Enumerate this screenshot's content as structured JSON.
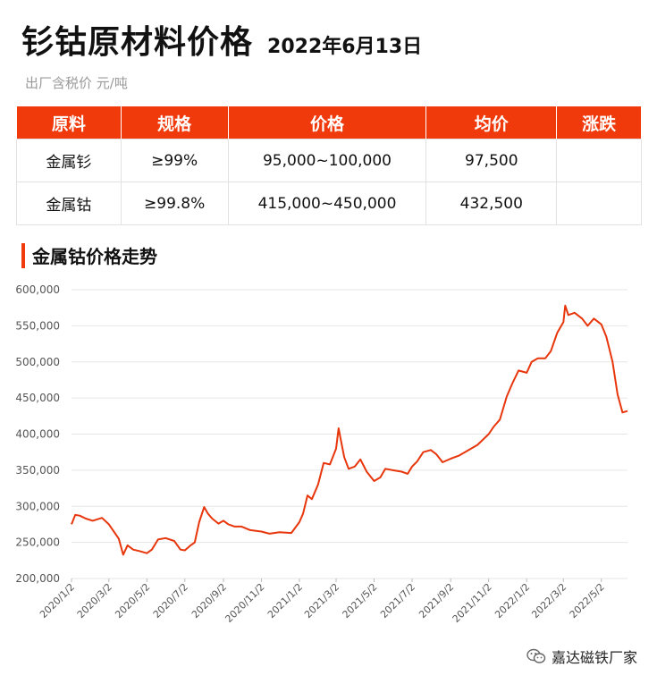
{
  "header": {
    "title": "钐钴原材料价格",
    "date": "2022年6月13日",
    "subtitle": "出厂含税价 元/吨"
  },
  "table": {
    "columns": [
      "原料",
      "规格",
      "价格",
      "均价",
      "涨跌"
    ],
    "rows": [
      [
        "金属钐",
        "≥99%",
        "95,000~100,000",
        "97,500",
        ""
      ],
      [
        "金属钴",
        "≥99.8%",
        "415,000~450,000",
        "432,500",
        ""
      ]
    ]
  },
  "section_title": "金属钴价格走势",
  "watermark": "嘉达磁铁厂家",
  "colors": {
    "accent": "#f03a0c",
    "line": "#e8360c"
  },
  "icons": {
    "watermark": "wechat-icon"
  },
  "chart_data": {
    "type": "line",
    "title": "",
    "xlabel": "",
    "ylabel": "",
    "ylim": [
      200000,
      600000
    ],
    "yticks": [
      200000,
      250000,
      300000,
      350000,
      400000,
      450000,
      500000,
      550000,
      600000
    ],
    "ytick_labels": [
      "200,000",
      "250,000",
      "300,000",
      "350,000",
      "400,000",
      "450,000",
      "500,000",
      "550,000",
      "600,000"
    ],
    "xlim": [
      "2020-01-02",
      "2022-06-13"
    ],
    "xtick_labels": [
      "2020/1/2",
      "2020/3/2",
      "2020/5/2",
      "2020/7/2",
      "2020/9/2",
      "2020/11/2",
      "2021/1/2",
      "2021/3/2",
      "2021/5/2",
      "2021/7/2",
      "2021/9/2",
      "2021/11/2",
      "2022/1/2",
      "2022/3/2",
      "2022/5/2"
    ],
    "xtick_dates": [
      "2020-01-02",
      "2020-03-02",
      "2020-05-02",
      "2020-07-02",
      "2020-09-02",
      "2020-11-02",
      "2021-01-02",
      "2021-03-02",
      "2021-05-02",
      "2021-07-02",
      "2021-09-02",
      "2021-11-02",
      "2022-01-02",
      "2022-03-02",
      "2022-05-02"
    ],
    "grid": true,
    "legend": "none",
    "series": [
      {
        "name": "",
        "x": [
          "2020-01-02",
          "2020-01-08",
          "2020-01-15",
          "2020-01-25",
          "2020-02-05",
          "2020-02-20",
          "2020-03-02",
          "2020-03-10",
          "2020-03-18",
          "2020-03-25",
          "2020-04-01",
          "2020-04-10",
          "2020-04-20",
          "2020-05-02",
          "2020-05-10",
          "2020-05-20",
          "2020-06-01",
          "2020-06-15",
          "2020-06-25",
          "2020-07-02",
          "2020-07-10",
          "2020-07-18",
          "2020-07-25",
          "2020-08-02",
          "2020-08-08",
          "2020-08-15",
          "2020-08-25",
          "2020-09-02",
          "2020-09-10",
          "2020-09-20",
          "2020-10-01",
          "2020-10-15",
          "2020-11-02",
          "2020-11-15",
          "2020-12-01",
          "2020-12-20",
          "2021-01-02",
          "2021-01-08",
          "2021-01-15",
          "2021-01-22",
          "2021-02-01",
          "2021-02-10",
          "2021-02-20",
          "2021-03-02",
          "2021-03-06",
          "2021-03-10",
          "2021-03-15",
          "2021-03-22",
          "2021-04-01",
          "2021-04-10",
          "2021-04-20",
          "2021-05-02",
          "2021-05-12",
          "2021-05-20",
          "2021-06-01",
          "2021-06-15",
          "2021-06-25",
          "2021-07-02",
          "2021-07-10",
          "2021-07-20",
          "2021-08-01",
          "2021-08-10",
          "2021-08-20",
          "2021-09-02",
          "2021-09-15",
          "2021-10-01",
          "2021-10-15",
          "2021-11-02",
          "2021-11-10",
          "2021-11-20",
          "2021-12-01",
          "2021-12-10",
          "2021-12-20",
          "2022-01-02",
          "2022-01-10",
          "2022-01-20",
          "2022-02-01",
          "2022-02-10",
          "2022-02-20",
          "2022-03-02",
          "2022-03-05",
          "2022-03-10",
          "2022-03-20",
          "2022-04-01",
          "2022-04-10",
          "2022-04-20",
          "2022-05-02",
          "2022-05-10",
          "2022-05-20",
          "2022-05-28",
          "2022-06-05",
          "2022-06-13"
        ],
        "values": [
          275000,
          288000,
          287000,
          283000,
          280000,
          284000,
          275000,
          265000,
          255000,
          233000,
          246000,
          240000,
          238000,
          235000,
          240000,
          254000,
          256000,
          252000,
          240000,
          239000,
          245000,
          250000,
          278000,
          299000,
          290000,
          283000,
          276000,
          280000,
          275000,
          272000,
          272000,
          267000,
          265000,
          262000,
          264000,
          263000,
          278000,
          290000,
          315000,
          310000,
          330000,
          360000,
          358000,
          380000,
          408000,
          390000,
          368000,
          352000,
          355000,
          365000,
          348000,
          335000,
          340000,
          352000,
          350000,
          348000,
          345000,
          355000,
          362000,
          375000,
          378000,
          372000,
          361000,
          366000,
          370000,
          378000,
          385000,
          400000,
          410000,
          420000,
          452000,
          470000,
          488000,
          485000,
          500000,
          505000,
          505000,
          515000,
          540000,
          555000,
          578000,
          565000,
          568000,
          560000,
          550000,
          560000,
          552000,
          535000,
          500000,
          455000,
          430000,
          432000
        ]
      }
    ]
  }
}
